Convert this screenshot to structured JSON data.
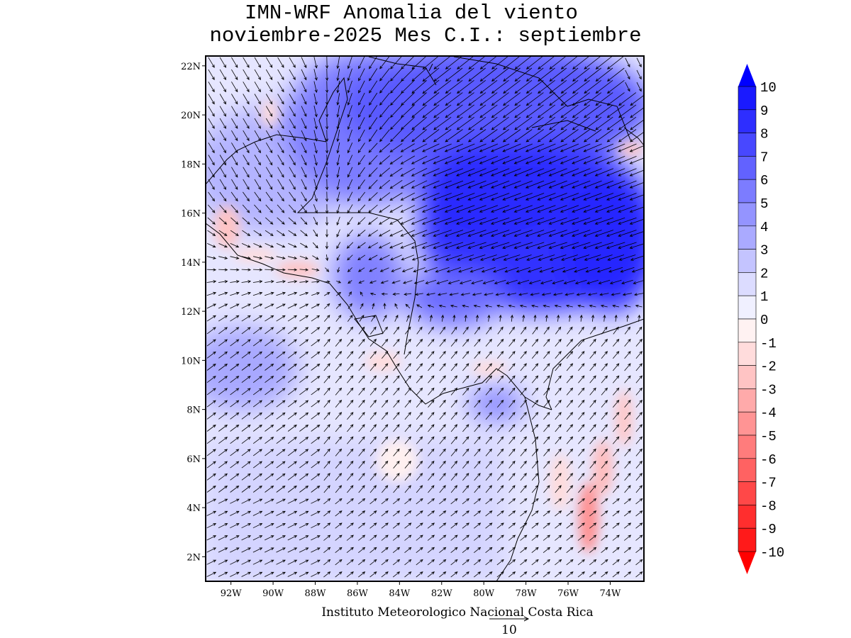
{
  "title": {
    "line1": "IMN-WRF Anomalia del viento",
    "line2": "noviembre-2025 Mes C.I.: septiembre"
  },
  "map": {
    "lat_labels": [
      "22N",
      "20N",
      "18N",
      "16N",
      "14N",
      "12N",
      "10N",
      "8N",
      "6N",
      "4N",
      "2N"
    ],
    "lon_labels": [
      "92W",
      "90W",
      "88W",
      "86W",
      "84W",
      "82W",
      "80W",
      "78W",
      "76W",
      "74W"
    ],
    "lat_range": [
      1.0,
      22.4
    ],
    "lon_range": [
      -93.2,
      -72.4
    ]
  },
  "colorbar": {
    "labels": [
      "10",
      "9",
      "8",
      "7",
      "6",
      "5",
      "4",
      "3",
      "2",
      "1",
      "0",
      "-1",
      "-2",
      "-3",
      "-4",
      "-5",
      "-6",
      "-7",
      "-8",
      "-9",
      "-10"
    ],
    "colors": [
      "#1a1aff",
      "#2e2eff",
      "#4848ff",
      "#6262ff",
      "#7c7cff",
      "#9494ff",
      "#aaaaff",
      "#c4c4ff",
      "#dcdcff",
      "#f0f0ff",
      "#fff2f2",
      "#ffdcdc",
      "#ffc4c4",
      "#ffaaaa",
      "#ff9494",
      "#ff7c7c",
      "#ff6262",
      "#ff4848",
      "#ff2e2e",
      "#ff1a1a"
    ],
    "top_arrow_color": "#0000ff",
    "bottom_arrow_color": "#ff0000"
  },
  "footer": {
    "credit": "Instituto Meteorologico Nacional Costa Rica",
    "ref_vector_label": "10"
  }
}
